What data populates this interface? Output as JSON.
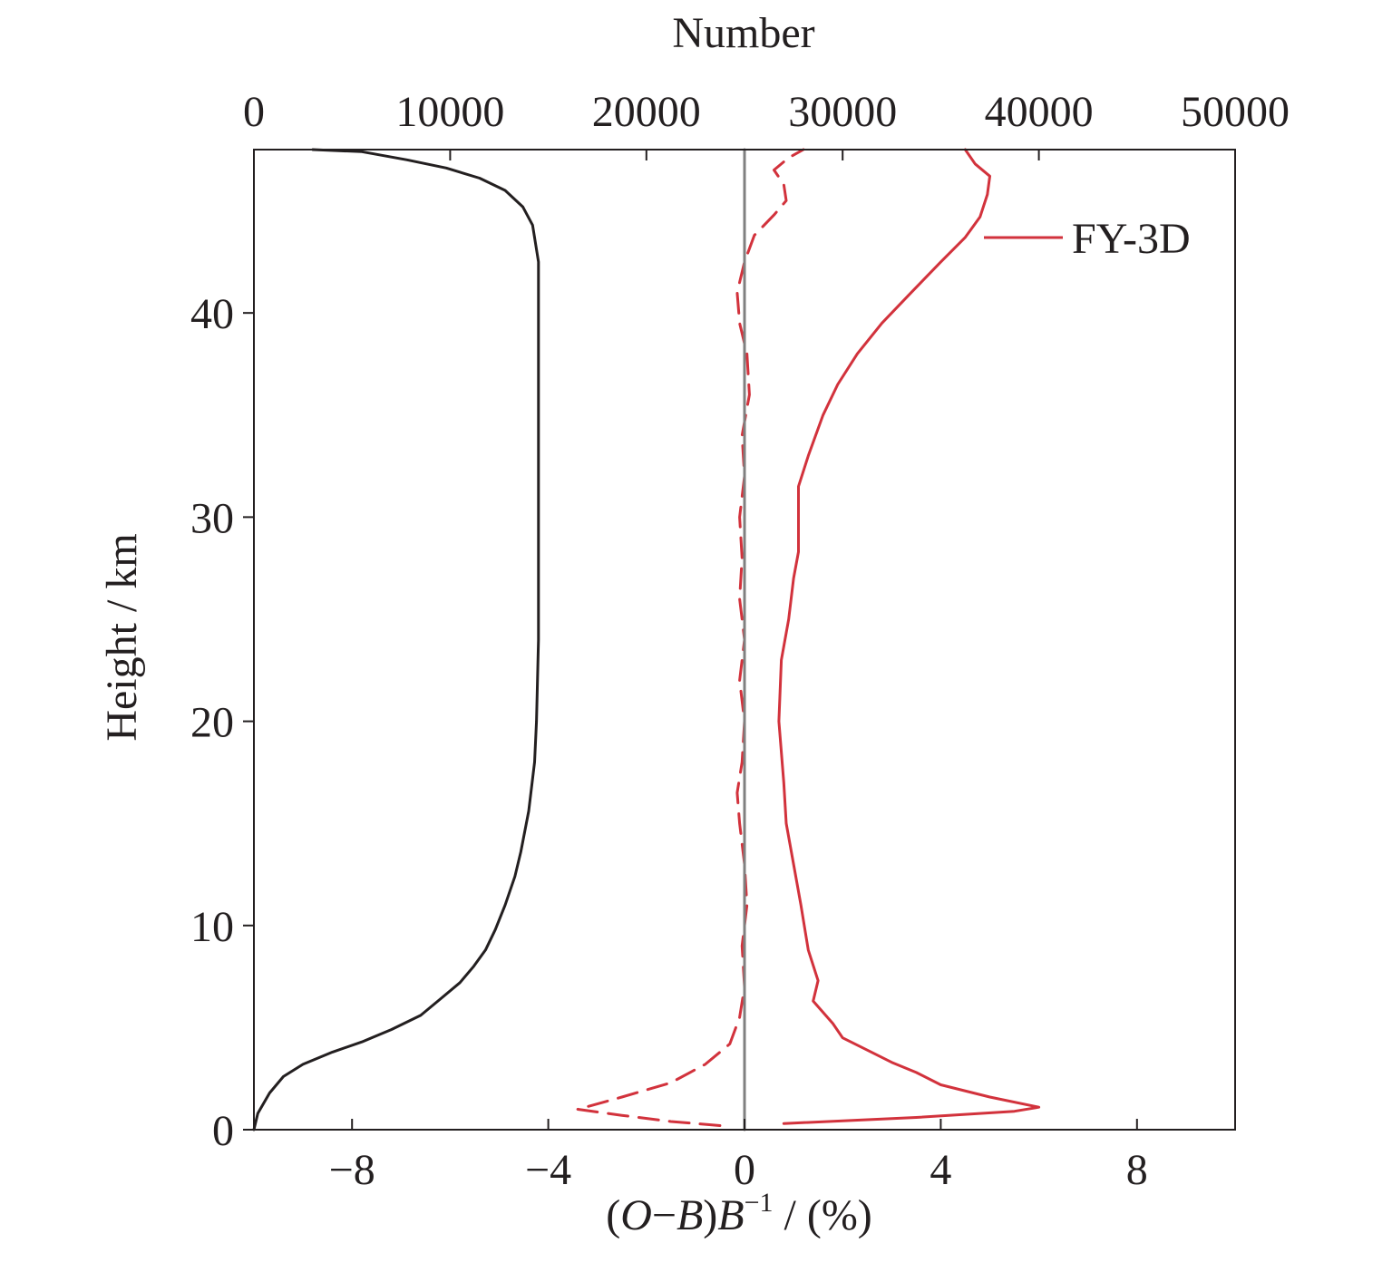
{
  "chart_data": {
    "type": "line",
    "top_axis": {
      "label": "Number",
      "range": [
        0,
        50000
      ],
      "ticks": [
        0,
        10000,
        20000,
        30000,
        40000,
        50000
      ],
      "tick_labels": [
        "0",
        "10000",
        "20000",
        "30000",
        "40000",
        "50000"
      ]
    },
    "bottom_axis": {
      "label_parts": {
        "open": "(",
        "o": "O",
        "minus": "−",
        "b1": "B",
        "close": ")",
        "b2": "B",
        "sup": "−1",
        "unit": " / (%)"
      },
      "range": [
        -10,
        10
      ],
      "ticks": [
        -8,
        -4,
        0,
        4,
        8
      ],
      "tick_labels": [
        "−8",
        "−4",
        "0",
        "4",
        "8"
      ]
    },
    "y_axis": {
      "label": "Height / km",
      "range": [
        0,
        48
      ],
      "ticks": [
        0,
        10,
        20,
        30,
        40
      ],
      "tick_labels": [
        "0",
        "10",
        "20",
        "30",
        "40"
      ]
    },
    "legend": {
      "position": "top-right",
      "entries": [
        {
          "label": "FY-3D",
          "color": "#d2323c",
          "style": "solid"
        }
      ]
    },
    "colors": {
      "number": "#231f20",
      "fy3d": "#d2323c",
      "zero_line": "#808080"
    },
    "series": [
      {
        "axis": "top",
        "color": "#231f20",
        "style": "solid",
        "points": [
          [
            0,
            0
          ],
          [
            200,
            0.8
          ],
          [
            800,
            1.8
          ],
          [
            1500,
            2.6
          ],
          [
            2500,
            3.2
          ],
          [
            4000,
            3.8
          ],
          [
            5500,
            4.3
          ],
          [
            7000,
            4.9
          ],
          [
            8500,
            5.6
          ],
          [
            9500,
            6.4
          ],
          [
            10500,
            7.2
          ],
          [
            11200,
            8.0
          ],
          [
            11800,
            8.8
          ],
          [
            12300,
            9.8
          ],
          [
            12800,
            11.0
          ],
          [
            13300,
            12.4
          ],
          [
            13600,
            13.6
          ],
          [
            14000,
            15.6
          ],
          [
            14300,
            18.0
          ],
          [
            14400,
            20.0
          ],
          [
            14500,
            24.0
          ],
          [
            14500,
            30.0
          ],
          [
            14500,
            36.0
          ],
          [
            14500,
            40.0
          ],
          [
            14500,
            42.5
          ],
          [
            14200,
            44.3
          ],
          [
            13700,
            45.2
          ],
          [
            12800,
            46.0
          ],
          [
            11500,
            46.6
          ],
          [
            9800,
            47.1
          ],
          [
            7800,
            47.5
          ],
          [
            5500,
            47.9
          ],
          [
            3000,
            48.0
          ]
        ]
      },
      {
        "axis": "bottom",
        "color": "#d2323c",
        "style": "solid",
        "points": [
          [
            0.8,
            0.3
          ],
          [
            3.5,
            0.6
          ],
          [
            5.5,
            0.9
          ],
          [
            6.0,
            1.1
          ],
          [
            5.0,
            1.6
          ],
          [
            4.0,
            2.2
          ],
          [
            3.5,
            2.8
          ],
          [
            3.0,
            3.3
          ],
          [
            2.5,
            3.9
          ],
          [
            2.0,
            4.5
          ],
          [
            1.8,
            5.2
          ],
          [
            1.4,
            6.3
          ],
          [
            1.5,
            7.3
          ],
          [
            1.3,
            8.8
          ],
          [
            1.15,
            11.0
          ],
          [
            1.0,
            13.0
          ],
          [
            0.85,
            15.0
          ],
          [
            0.8,
            17.0
          ],
          [
            0.7,
            20.0
          ],
          [
            0.75,
            23.0
          ],
          [
            0.9,
            25.0
          ],
          [
            1.0,
            27.0
          ],
          [
            1.1,
            28.3
          ],
          [
            1.1,
            30.0
          ],
          [
            1.1,
            31.5
          ],
          [
            1.3,
            33.0
          ],
          [
            1.6,
            35.0
          ],
          [
            1.9,
            36.5
          ],
          [
            2.3,
            38.0
          ],
          [
            2.8,
            39.5
          ],
          [
            3.4,
            41.0
          ],
          [
            4.0,
            42.5
          ],
          [
            4.5,
            43.7
          ],
          [
            4.8,
            44.7
          ],
          [
            4.95,
            45.8
          ],
          [
            5.0,
            46.7
          ],
          [
            4.7,
            47.3
          ],
          [
            4.5,
            48.0
          ]
        ]
      },
      {
        "axis": "bottom",
        "color": "#d2323c",
        "style": "dashed",
        "points": [
          [
            -0.5,
            0.2
          ],
          [
            -1.5,
            0.4
          ],
          [
            -2.5,
            0.7
          ],
          [
            -3.4,
            1.0
          ],
          [
            -2.5,
            1.6
          ],
          [
            -1.5,
            2.3
          ],
          [
            -0.8,
            3.2
          ],
          [
            -0.3,
            4.2
          ],
          [
            -0.1,
            5.5
          ],
          [
            0.0,
            7.0
          ],
          [
            -0.05,
            9.0
          ],
          [
            0.05,
            11.0
          ],
          [
            0.0,
            13.0
          ],
          [
            -0.1,
            15.0
          ],
          [
            -0.15,
            16.5
          ],
          [
            -0.05,
            18.0
          ],
          [
            0.0,
            20.0
          ],
          [
            -0.1,
            22.0
          ],
          [
            0.0,
            24.0
          ],
          [
            -0.1,
            26.0
          ],
          [
            -0.05,
            28.0
          ],
          [
            -0.1,
            30.0
          ],
          [
            0.0,
            32.0
          ],
          [
            -0.05,
            34.0
          ],
          [
            0.1,
            36.0
          ],
          [
            0.05,
            38.0
          ],
          [
            -0.1,
            39.5
          ],
          [
            -0.15,
            41.0
          ],
          [
            0.0,
            42.5
          ],
          [
            0.2,
            43.8
          ],
          [
            0.6,
            44.8
          ],
          [
            0.85,
            45.5
          ],
          [
            0.8,
            46.3
          ],
          [
            0.6,
            47.0
          ],
          [
            0.9,
            47.6
          ],
          [
            1.2,
            48.0
          ]
        ]
      },
      {
        "axis": "bottom",
        "color": "#808080",
        "style": "solid",
        "points": [
          [
            0,
            0
          ],
          [
            0,
            48
          ]
        ]
      }
    ]
  }
}
